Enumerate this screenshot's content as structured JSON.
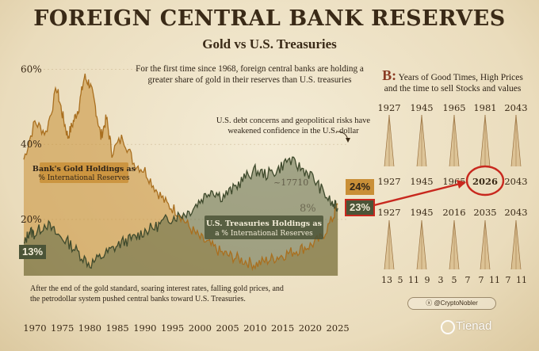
{
  "header": {
    "title": "FOREIGN CENTRAL BANK RESERVES",
    "subtitle": "Gold vs U.S. Treasuries"
  },
  "text": {
    "lead": "For the first time since 1968, foreign central banks are holding a greater share of gold in their reserves than U.S. treasuries",
    "note": "U.S. debt concerns and geopolitical risks have weakened confidence in the U.S. dollar",
    "footer": "After the end of the gold standard, soaring interest rates, falling gold prices, and the petrodollar system pushed central banks toward U.S. Treasuries.",
    "gold_label": "Bank's Gold Holdings as % International Reserves",
    "treasury_label": "U.S. Treasuries Holdings as a % International Reserves",
    "ghost_a": "~17710",
    "ghost_b": "8%"
  },
  "badges": {
    "left_13": "13%",
    "gold_24": "24%",
    "treasury_23": "23%"
  },
  "panel": {
    "letter": "B:",
    "title_1": "Years of Good Times, High Prices",
    "title_2": "and the time to sell Stocks and values",
    "row1_top": [
      "1927",
      "1945",
      "1965",
      "1981",
      "2043"
    ],
    "row1_bottom": [
      "1927",
      "1945",
      "1965",
      "2026",
      "2043"
    ],
    "row2_top": [
      "1927",
      "1945",
      "2016",
      "2035",
      "2043"
    ],
    "row2_bottom": [
      "13",
      "5",
      "11",
      "9",
      "3",
      "5",
      "7",
      "7",
      "11",
      "7",
      "11"
    ],
    "highlight": "2026"
  },
  "credit": "@CryptoNobler",
  "watermark": "Tienad",
  "colors": {
    "gold": "#c98f37",
    "treasury": "#5f6a47",
    "red": "#c8281e",
    "ink": "#3a2a17"
  },
  "chart_data": {
    "type": "area",
    "x_range": [
      1968,
      2027
    ],
    "y_range": [
      5,
      62
    ],
    "yticks": [
      {
        "value": 60,
        "label": "60%"
      },
      {
        "value": 40,
        "label": "40%"
      },
      {
        "value": 20,
        "label": "20%"
      }
    ],
    "xticks": [
      1970,
      1975,
      1980,
      1985,
      1990,
      1995,
      2000,
      2005,
      2010,
      2015,
      2020,
      2025
    ],
    "series": [
      {
        "name": "Bank's Gold Holdings as % International Reserves",
        "x": [
          1968,
          1970,
          1972,
          1974,
          1975,
          1976,
          1977,
          1978,
          1979,
          1980,
          1981,
          1982,
          1983,
          1984,
          1986,
          1988,
          1990,
          1992,
          1994,
          1996,
          1998,
          2000,
          2002,
          2004,
          2006,
          2008,
          2010,
          2012,
          2014,
          2016,
          2018,
          2020,
          2022,
          2024,
          2025
        ],
        "y": [
          36,
          46,
          43,
          55,
          48,
          42,
          46,
          50,
          58,
          56,
          50,
          42,
          47,
          38,
          42,
          35,
          33,
          28,
          24,
          22,
          18,
          15,
          13,
          11,
          10,
          9,
          8,
          9,
          10,
          11,
          12,
          13,
          15,
          20,
          24
        ]
      },
      {
        "name": "U.S. Treasuries Holdings as a % International Reserves",
        "x": [
          1968,
          1969,
          1970,
          1972,
          1974,
          1976,
          1978,
          1980,
          1982,
          1984,
          1986,
          1988,
          1990,
          1992,
          1994,
          1996,
          1998,
          2000,
          2002,
          2004,
          2006,
          2008,
          2010,
          2012,
          2014,
          2016,
          2018,
          2020,
          2022,
          2024,
          2025
        ],
        "y": [
          13,
          17,
          16,
          19,
          16,
          14,
          11,
          8,
          10,
          12,
          14,
          15,
          17,
          18,
          20,
          21,
          22,
          25,
          28,
          26,
          28,
          31,
          33,
          32,
          33,
          36,
          34,
          32,
          28,
          24,
          23
        ]
      }
    ]
  }
}
